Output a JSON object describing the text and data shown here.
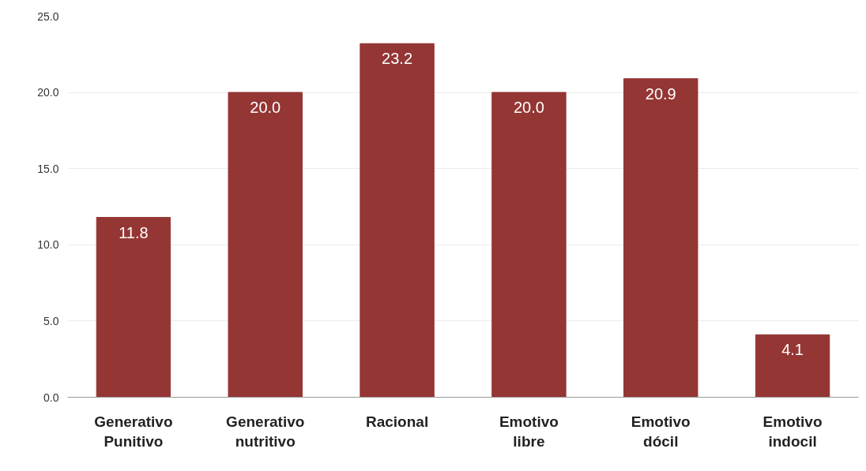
{
  "chart_data": {
    "type": "bar",
    "categories": [
      "Generativo Punitivo",
      "Generativo nutritivo",
      "Racional",
      "Emotivo libre",
      "Emotivo dócil",
      "Emotivo indocil"
    ],
    "values": [
      11.8,
      20.0,
      23.2,
      20.0,
      20.9,
      4.1
    ],
    "color": "#943634",
    "ylim": [
      0,
      25
    ],
    "yticks": [
      {
        "value": 0,
        "label": "0.0"
      },
      {
        "value": 5,
        "label": "5.0"
      },
      {
        "value": 10,
        "label": "10.0"
      },
      {
        "value": 15,
        "label": "15.0"
      },
      {
        "value": 20,
        "label": "20.0"
      },
      {
        "value": 25,
        "label": "25.0"
      }
    ],
    "grid": "y",
    "value_labels": [
      "11.8",
      "20.0",
      "23.2",
      "20.0",
      "20.9",
      "4.1"
    ]
  }
}
